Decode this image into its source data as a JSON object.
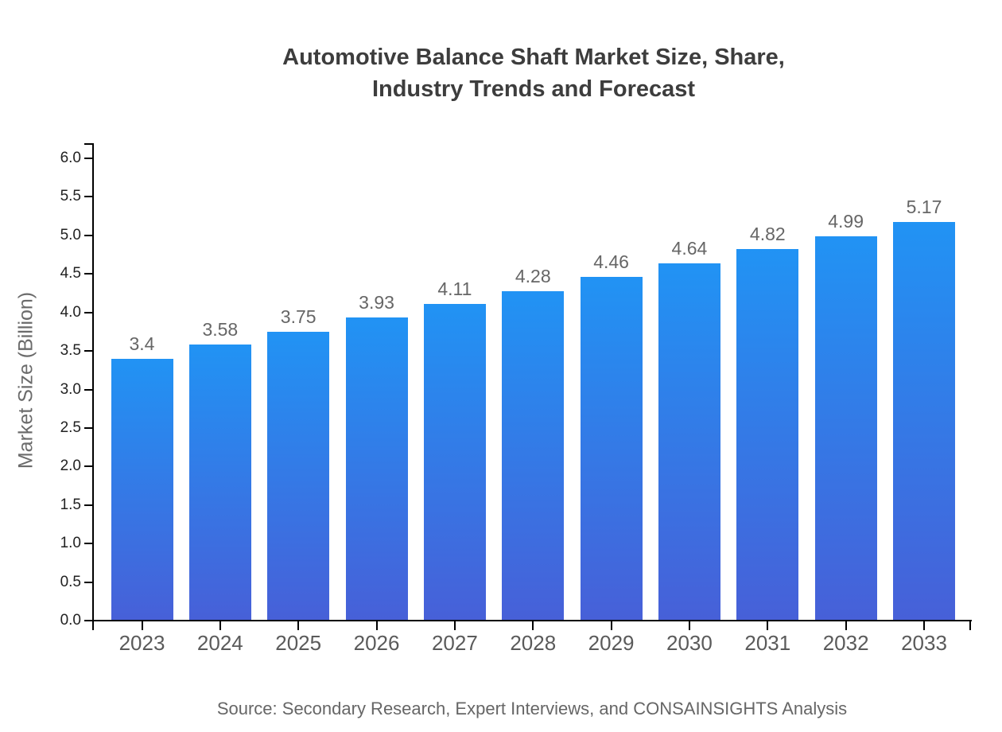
{
  "title": {
    "line1": "Automotive Balance Shaft Market Size, Share,",
    "line2": "Industry Trends and Forecast"
  },
  "source": "Source: Secondary Research, Expert Interviews, and CONSAINSIGHTS Analysis",
  "chart_data": {
    "type": "bar",
    "title": "Automotive Balance Shaft Market Size, Share, Industry Trends and Forecast",
    "xlabel": "",
    "ylabel": "Market Size (Billion)",
    "categories": [
      "2023",
      "2024",
      "2025",
      "2026",
      "2027",
      "2028",
      "2029",
      "2030",
      "2031",
      "2032",
      "2033"
    ],
    "values": [
      3.4,
      3.58,
      3.75,
      3.93,
      4.11,
      4.28,
      4.46,
      4.64,
      4.82,
      4.99,
      5.17
    ],
    "value_labels": [
      "3.4",
      "3.58",
      "3.75",
      "3.93",
      "4.11",
      "4.28",
      "4.46",
      "4.64",
      "4.82",
      "4.99",
      "5.17"
    ],
    "ylim": [
      0.0,
      6.0
    ],
    "ytick_step": 0.5,
    "ytick_labels": [
      "0.0",
      "0.5",
      "1.0",
      "1.5",
      "2.0",
      "2.5",
      "3.0",
      "3.5",
      "4.0",
      "4.5",
      "5.0",
      "5.5",
      "6.0"
    ],
    "grid": false,
    "legend": false,
    "colors": {
      "bar_gradient_top": "#2193f4",
      "bar_gradient_bottom": "#4760d8",
      "axis": "#000000",
      "ytick_text": "#222222",
      "xtick_text": "#5a5a5a",
      "value_text": "#666666",
      "title_text": "#3d3d3d",
      "muted_text": "#666666"
    }
  }
}
